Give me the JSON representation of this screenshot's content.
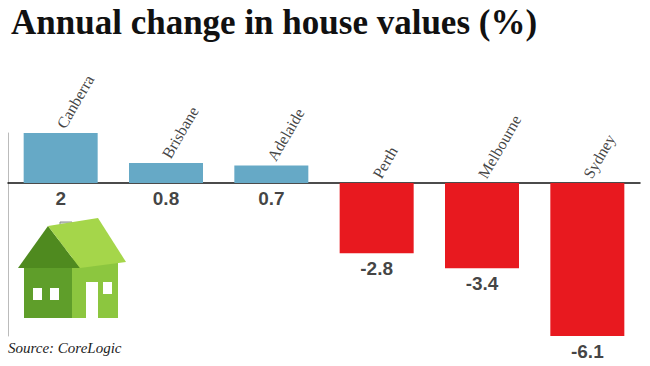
{
  "chart_data": {
    "type": "bar",
    "title": "Annual change in house values (%)",
    "categories": [
      "Canberra",
      "Brisbane",
      "Adelaide",
      "Perth",
      "Melbourne",
      "Sydney"
    ],
    "values": [
      2,
      0.8,
      0.7,
      -2.8,
      -3.4,
      -6.1
    ],
    "colors": [
      "#66a9c6",
      "#66a9c6",
      "#66a9c6",
      "#e8191f",
      "#e8191f",
      "#e8191f"
    ],
    "ylim": [
      -6.1,
      2
    ],
    "yticks": [
      0
    ],
    "grid": false,
    "data_labels": true,
    "tick_labels": "x",
    "annotations": [
      "Source: CoreLogic"
    ]
  }
}
